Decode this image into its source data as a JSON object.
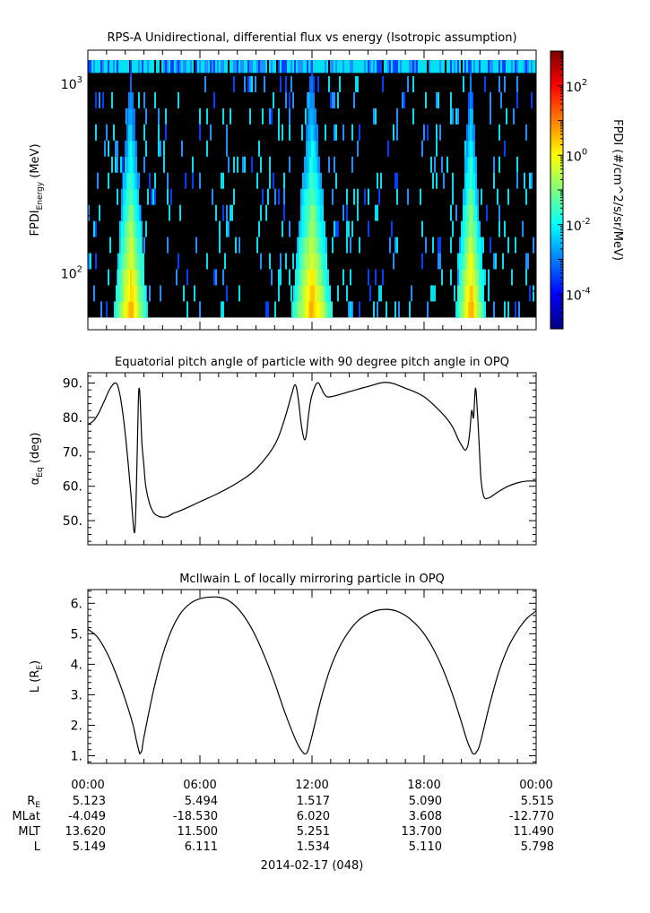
{
  "chart_data": [
    {
      "type": "heatmap",
      "title": "RPS-A Unidirectional, differential flux vs energy (Isotropic assumption)",
      "ylabel_main": "FPDI",
      "ylabel_sub": "Energy",
      "ylabel_unit": " (MeV)",
      "yscale": "log",
      "ylim": [
        50,
        1500
      ],
      "y_ticks": [
        {
          "value": 100,
          "base": "10",
          "exp": "2"
        },
        {
          "value": 1000,
          "base": "10",
          "exp": "3"
        }
      ],
      "energy_range_mev": [
        58,
        1330
      ],
      "high_flux_intervals_hours": [
        [
          1.4,
          3.2
        ],
        [
          10.9,
          13.1
        ],
        [
          19.7,
          21.3
        ]
      ],
      "colorbar": {
        "label": "FPDI (#/cm^2/s/sr/MeV)",
        "scale": "log",
        "range": [
          1e-05,
          1000
        ],
        "ticks": [
          {
            "value": 100,
            "base": "10",
            "exp": "2"
          },
          {
            "value": 1,
            "base": "10",
            "exp": "0"
          },
          {
            "value": 0.01,
            "base": "10",
            "exp": "-2"
          },
          {
            "value": 0.0001,
            "base": "10",
            "exp": "-4"
          }
        ],
        "colors": [
          "#00007f",
          "#0000ff",
          "#007fff",
          "#00ffff",
          "#7fff7f",
          "#ffff00",
          "#ff7f00",
          "#ff0000",
          "#7f0000"
        ]
      }
    },
    {
      "type": "line",
      "title": "Equatorial pitch angle of particle with 90 degree pitch angle in OPQ",
      "ylabel_main": "α",
      "ylabel_sub": "Eq",
      "ylabel_unit": " (deg)",
      "ylim": [
        43,
        93
      ],
      "y_ticks": [
        "50.",
        "60.",
        "70.",
        "80.",
        "90."
      ],
      "x": [
        0,
        0.3,
        0.6,
        0.9,
        1.2,
        1.5,
        1.7,
        1.9,
        2.1,
        2.3,
        2.5,
        2.6,
        2.7,
        2.75,
        2.8,
        2.85,
        2.9,
        3.0,
        3.1,
        3.3,
        3.5,
        3.7,
        4.0,
        4.3,
        4.6,
        5.0,
        6.0,
        7.0,
        8.0,
        9.0,
        10.0,
        10.5,
        10.9,
        11.1,
        11.25,
        11.4,
        11.5,
        11.6,
        11.7,
        11.8,
        11.9,
        12.0,
        12.2,
        12.35,
        12.5,
        12.7,
        13.0,
        14.0,
        15.0,
        16.0,
        17.0,
        18.0,
        19.0,
        19.5,
        19.8,
        20.0,
        20.2,
        20.35,
        20.45,
        20.55,
        20.65,
        20.75,
        20.85,
        20.95,
        21.05,
        21.2,
        21.4,
        21.6,
        22.0,
        22.5,
        23.0,
        23.5,
        24.0
      ],
      "y": [
        78,
        79,
        81.5,
        85,
        88.5,
        90,
        87,
        80,
        70,
        58,
        46.5,
        60,
        84,
        88.5,
        85,
        78,
        72,
        66,
        60,
        55,
        52.5,
        51.5,
        51,
        51.3,
        52.2,
        53,
        55.5,
        58,
        61,
        65,
        72,
        79,
        86.5,
        89.5,
        86,
        79,
        75.5,
        73.5,
        75,
        80,
        84,
        86.5,
        89.5,
        90,
        88.5,
        86.5,
        86,
        87.5,
        89,
        90.2,
        88.5,
        86,
        81,
        77.5,
        74,
        72,
        70.5,
        72,
        76,
        82,
        80,
        88.5,
        82,
        72,
        62,
        57,
        56.5,
        57,
        58.5,
        60,
        61,
        61.5,
        61.5
      ]
    },
    {
      "type": "line",
      "title": "McIlwain L of locally mirroring particle in OPQ",
      "ylabel_main": "L (R",
      "ylabel_sub": "E",
      "ylabel_unit": ")",
      "ylim": [
        0.75,
        6.45
      ],
      "y_ticks": [
        "1.",
        "2.",
        "3.",
        "4.",
        "5.",
        "6."
      ],
      "x": [
        0,
        0.5,
        1.0,
        1.5,
        2.0,
        2.4,
        2.6,
        2.75,
        2.8,
        2.9,
        3.0,
        3.5,
        4.0,
        4.5,
        5.0,
        5.5,
        6.0,
        6.5,
        7.0,
        7.5,
        8.0,
        8.5,
        9.0,
        9.5,
        10.0,
        10.5,
        11.0,
        11.3,
        11.5,
        11.6,
        11.7,
        11.8,
        12.0,
        12.5,
        13.0,
        13.5,
        14.0,
        14.5,
        15.0,
        15.5,
        16.0,
        16.5,
        17.0,
        17.5,
        18.0,
        18.5,
        19.0,
        19.5,
        20.0,
        20.3,
        20.5,
        20.6,
        20.7,
        20.8,
        21.0,
        21.5,
        22.0,
        22.5,
        23.0,
        23.5,
        24.0
      ],
      "y": [
        5.15,
        4.9,
        4.4,
        3.7,
        2.85,
        2.05,
        1.5,
        1.12,
        1.08,
        1.2,
        1.6,
        3.1,
        4.3,
        5.15,
        5.7,
        6.0,
        6.15,
        6.2,
        6.2,
        6.1,
        5.85,
        5.45,
        4.9,
        4.2,
        3.4,
        2.5,
        1.7,
        1.3,
        1.12,
        1.06,
        1.08,
        1.2,
        1.65,
        2.9,
        3.9,
        4.6,
        5.1,
        5.45,
        5.65,
        5.77,
        5.8,
        5.75,
        5.6,
        5.35,
        5.0,
        4.5,
        3.85,
        3.05,
        2.1,
        1.5,
        1.2,
        1.08,
        1.06,
        1.12,
        1.4,
        2.65,
        3.75,
        4.55,
        5.1,
        5.5,
        5.75
      ]
    }
  ],
  "x_axis": {
    "range_hours": [
      0,
      24
    ],
    "ticks": [
      {
        "hour": 0,
        "label": "00:00"
      },
      {
        "hour": 6,
        "label": "06:00"
      },
      {
        "hour": 12,
        "label": "12:00"
      },
      {
        "hour": 18,
        "label": "18:00"
      },
      {
        "hour": 24,
        "label": "00:00"
      }
    ],
    "rows": [
      {
        "label_main": "R",
        "label_sub": "E",
        "values": [
          "5.123",
          "5.494",
          "1.517",
          "5.090",
          "5.515"
        ]
      },
      {
        "label_main": "MLat",
        "label_sub": "",
        "values": [
          "-4.049",
          "-18.530",
          "6.020",
          "3.608",
          "-12.770"
        ]
      },
      {
        "label_main": "MLT",
        "label_sub": "",
        "values": [
          "13.620",
          "11.500",
          "5.251",
          "13.700",
          "11.490"
        ]
      },
      {
        "label_main": "L",
        "label_sub": "",
        "values": [
          "5.149",
          "6.111",
          "1.534",
          "5.110",
          "5.798"
        ]
      }
    ],
    "date_label": "2014-02-17 (048)"
  }
}
